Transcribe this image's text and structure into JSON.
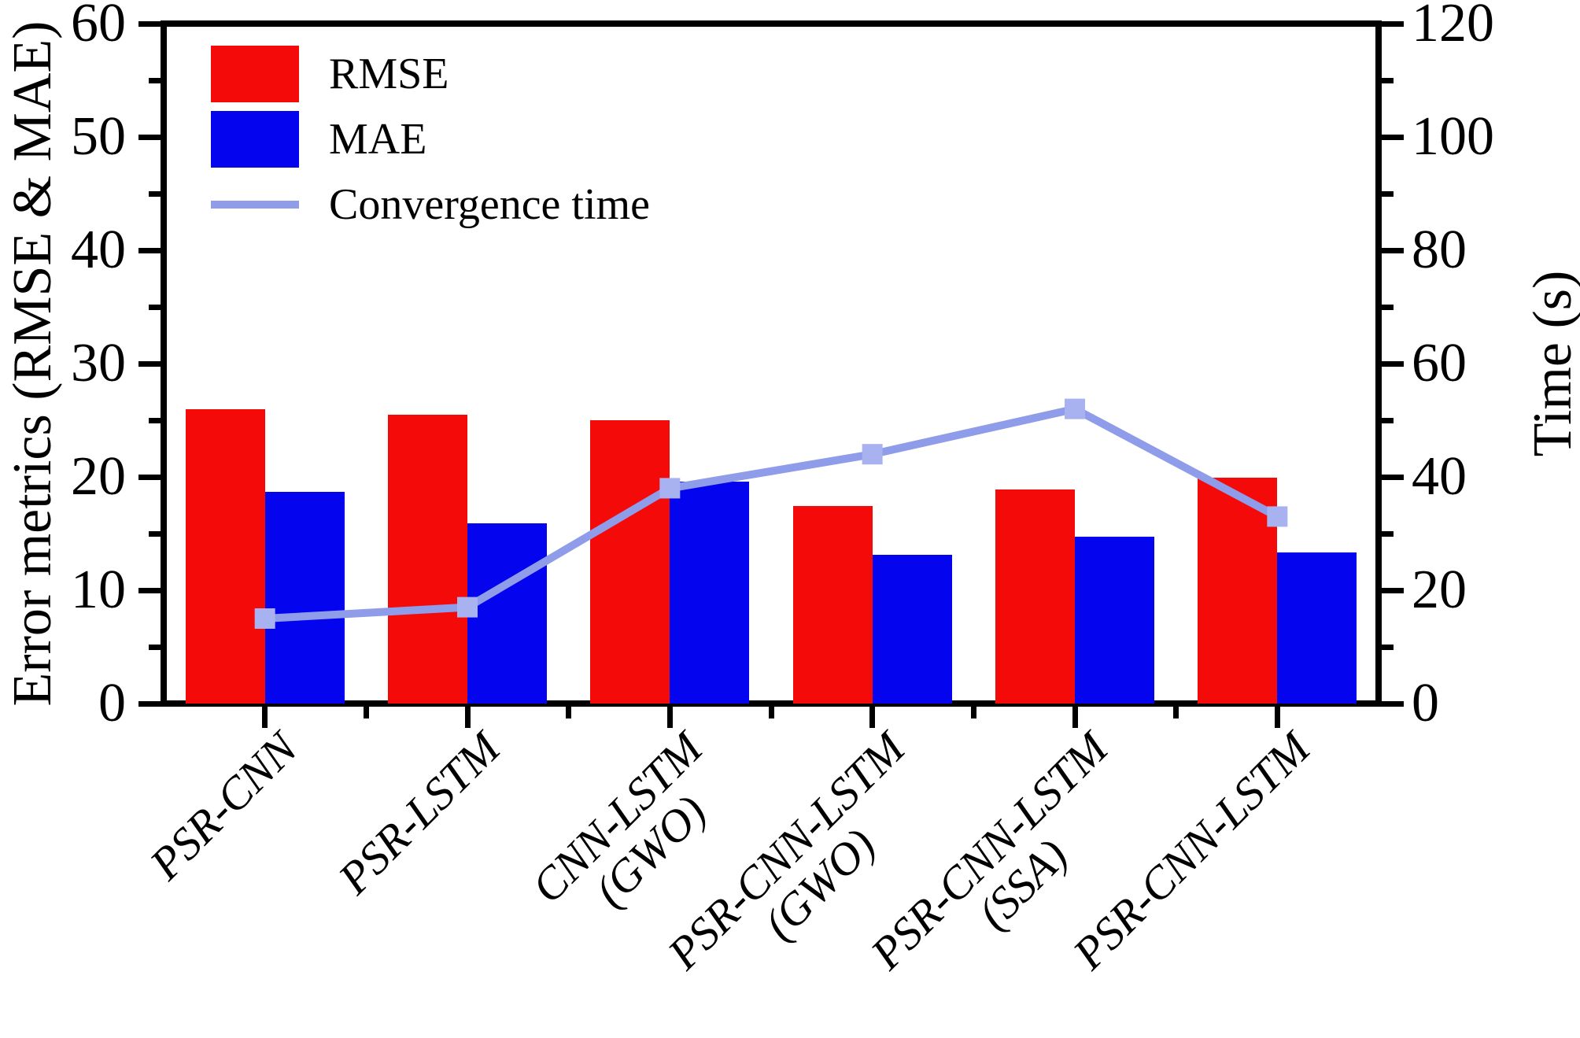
{
  "figure": {
    "background": "#ffffff"
  },
  "chart_data": {
    "type": "bar",
    "title": "",
    "categories": [
      "PSR-CNN",
      "PSR-LSTM",
      "CNN-LSTM\n(GWO)",
      "PSR-CNN-LSTM\n(GWO)",
      "PSR-CNN-LSTM\n(SSA)",
      "PSR-CNN-LSTM"
    ],
    "series": [
      {
        "name": "RMSE",
        "type": "bar",
        "axis": "left",
        "color": "#f50a0a",
        "values": [
          26.0,
          25.5,
          25.0,
          17.4,
          18.9,
          19.9
        ]
      },
      {
        "name": "MAE",
        "type": "bar",
        "axis": "left",
        "color": "#0404ee",
        "values": [
          18.7,
          15.9,
          19.6,
          13.1,
          14.7,
          13.3
        ]
      },
      {
        "name": "Convergence time",
        "type": "line",
        "axis": "right",
        "color": "#8e9cea",
        "marker": "square",
        "marker_color": "#a8b2f0",
        "values": [
          15,
          17,
          38,
          44,
          52,
          33
        ]
      }
    ],
    "left_axis": {
      "label": "Error metrics (RMSE & MAE)",
      "min": 0,
      "max": 60,
      "major_step": 10,
      "minor_step": 5,
      "tick_labels": [
        "0",
        "10",
        "20",
        "30",
        "40",
        "50",
        "60"
      ]
    },
    "right_axis": {
      "label": "Time (s)",
      "min": 0,
      "max": 120,
      "major_step": 20,
      "minor_step": 10,
      "tick_labels": [
        "0",
        "20",
        "40",
        "60",
        "80",
        "100",
        "120"
      ]
    },
    "legend": {
      "position": "top-left",
      "entries": [
        "RMSE",
        "MAE",
        "Convergence time"
      ]
    },
    "grid": false,
    "frame": true
  }
}
